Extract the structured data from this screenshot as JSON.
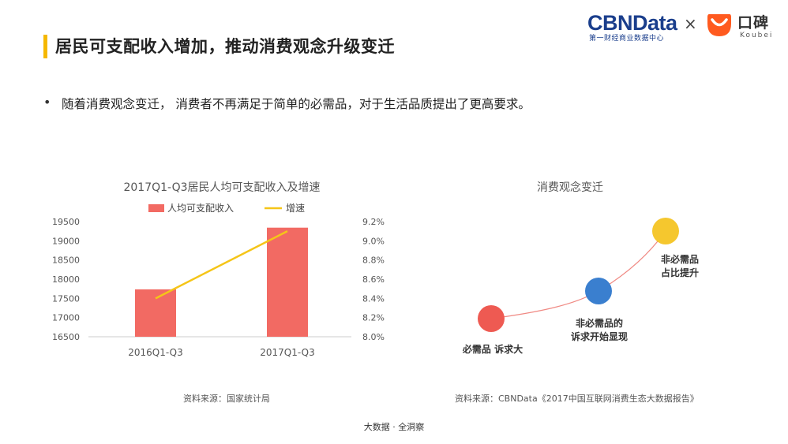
{
  "header": {
    "title": "居民可支配收入增加，推动消费观念升级变迁",
    "cbn_part1": "CBN",
    "cbn_part2": "Data",
    "cbn_sub": "第一财经商业数据中心",
    "times": "×",
    "koubei_cn": "口碑",
    "koubei_en": "Koubei"
  },
  "bullet": {
    "mark": "•",
    "text": "随着消费观念变迁， 消费者不再满足于简单的必需品，对于生活品质提出了更高要求。"
  },
  "source_left": "资料来源：国家统计局",
  "source_right": "资料来源：CBNData《2017中国互联网消费生态大数据报告》",
  "footer": "大数据 · 全洞察",
  "colors": {
    "accent_bar": "#f5b800",
    "bar": "#f26a63",
    "line": "#f5c518",
    "red_circle": "#ee5a52",
    "blue_circle": "#3a7fcf",
    "yellow_circle": "#f5c72e",
    "curve": "#f08a84"
  },
  "chart_data": [
    {
      "type": "bar",
      "title": "2017Q1-Q3居民人均可支配收入及增速",
      "categories": [
        "2016Q1-Q3",
        "2017Q1-Q3"
      ],
      "series": [
        {
          "name": "人均可支配收入",
          "kind": "bar",
          "axis": "left",
          "values": [
            17735,
            19342
          ]
        },
        {
          "name": "增速",
          "kind": "line",
          "axis": "right",
          "values": [
            8.4,
            9.1
          ]
        }
      ],
      "ylim": [
        16500,
        19500
      ],
      "yticks": [
        "19500",
        "19000",
        "18500",
        "18000",
        "17500",
        "17000",
        "16500"
      ],
      "y2lim": [
        8.0,
        9.2
      ],
      "y2ticks": [
        "9.2%",
        "9.0%",
        "8.8%",
        "8.6%",
        "8.4%",
        "8.2%",
        "8.0%"
      ],
      "legend": "top"
    },
    {
      "type": "diagram",
      "title": "消费观念变迁",
      "stages": [
        {
          "label": "必需品 诉求大",
          "color": "red"
        },
        {
          "label_line1": "非必需品的",
          "label_line2": "诉求开始显现",
          "color": "blue"
        },
        {
          "label_line1": "非必需品",
          "label_line2": "占比提升",
          "color": "yellow"
        }
      ]
    }
  ]
}
